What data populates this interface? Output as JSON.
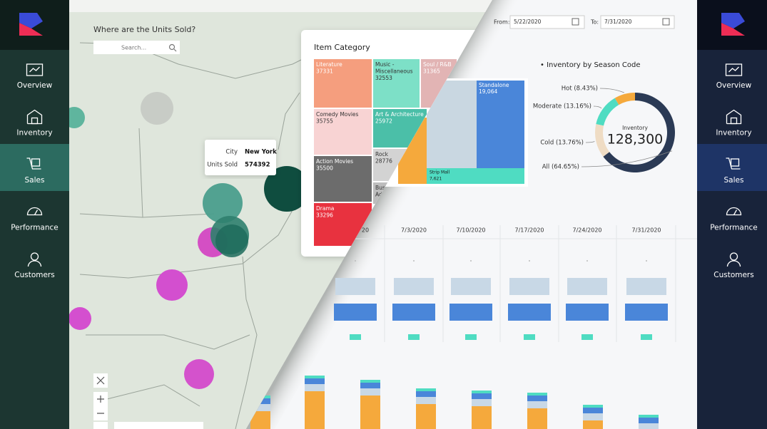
{
  "left_nav": {
    "items": [
      "Overview",
      "Inventory",
      "Sales",
      "Performance",
      "Customers"
    ]
  },
  "right_nav": {
    "items": [
      "Overview",
      "Inventory",
      "Sales",
      "Performance",
      "Customers"
    ]
  },
  "map": {
    "title": "Where are the Units Sold?",
    "search_placeholder": "Search...",
    "tooltip": {
      "rows": [
        [
          "City",
          "New York"
        ],
        [
          "Units Sold",
          "574392"
        ]
      ]
    }
  },
  "item_category": {
    "title": "Item Category",
    "tiles": [
      {
        "lines": [
          "Literature",
          "37331"
        ]
      },
      {
        "lines": [
          "Music -",
          "Miscellaneous",
          "32553"
        ]
      },
      {
        "lines": [
          "Soul / R&B",
          "31365"
        ]
      },
      {
        "lines": [
          "Comedy Movies",
          "35755"
        ]
      },
      {
        "lines": [
          "Art & Architecture",
          "25972"
        ]
      },
      {
        "lines": [
          "Action Movies",
          "35500"
        ]
      },
      {
        "lines": [
          "Rock",
          "28776"
        ]
      },
      {
        "lines": [
          "Busi",
          "Adv"
        ]
      },
      {
        "lines": [
          "Drama",
          "33296"
        ]
      }
    ]
  },
  "date_range": {
    "from_label": "From:",
    "from": "5/22/2020",
    "to_label": "To:",
    "to": "7/31/2020"
  },
  "store_treemap": {
    "tiles": [
      {
        "lines": [
          "Standalone",
          "19,064"
        ]
      },
      {
        "lines": [
          "Strip Mall",
          "7,621"
        ]
      }
    ]
  },
  "season_chart": {
    "title": "• Inventory by Season Code",
    "center_label": "Inventory",
    "center_value": "128,300",
    "segments": [
      {
        "label": "Hot (8.43%)",
        "value": 8.43,
        "color": "#f5a93c"
      },
      {
        "label": "Moderate (13.16%)",
        "value": 13.16,
        "color": "#4fdcc2"
      },
      {
        "label": "Cold (13.76%)",
        "value": 13.76,
        "color": "#efdcc4"
      },
      {
        "label": "All (64.65%)",
        "value": 64.65,
        "color": "#2b3a55"
      }
    ]
  },
  "timeline": {
    "dates": [
      "20",
      "7/3/2020",
      "7/10/2020",
      "7/17/2020",
      "7/24/2020",
      "7/31/2020"
    ]
  }
}
